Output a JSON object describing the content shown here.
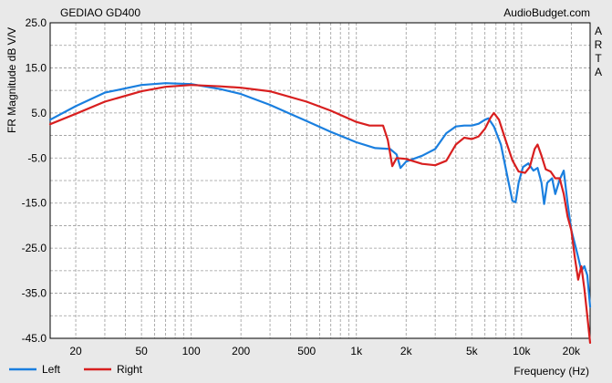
{
  "chart_data": {
    "type": "line",
    "title": "GEDIAO GD400",
    "watermark": "AudioBudget.com",
    "side_label": "ARTA",
    "ylabel": "FR Magnitude dB V/V",
    "xlabel": "Frequency (Hz)",
    "xscale": "log",
    "xlim": [
      14,
      26000
    ],
    "ylim": [
      -45,
      25
    ],
    "yticks": [
      25,
      15,
      5,
      -5,
      -15,
      -25,
      -35,
      -45
    ],
    "ytick_labels": [
      "25.0",
      "15.0",
      "5.0",
      "-5.0",
      "-15.0",
      "-25.0",
      "-35.0",
      "-45.0"
    ],
    "xticks": [
      20,
      50,
      100,
      200,
      500,
      1000,
      2000,
      5000,
      10000,
      20000
    ],
    "xtick_labels": [
      "20",
      "50",
      "100",
      "200",
      "500",
      "1k",
      "2k",
      "5k",
      "10k",
      "20k"
    ],
    "grid": true,
    "legend_position": "bottom-left",
    "series": [
      {
        "name": "Left",
        "color": "#1a7fdf",
        "points": [
          [
            14,
            3.5
          ],
          [
            20,
            6.5
          ],
          [
            30,
            9.5
          ],
          [
            50,
            11.2
          ],
          [
            70,
            11.6
          ],
          [
            100,
            11.4
          ],
          [
            150,
            10.3
          ],
          [
            200,
            9.2
          ],
          [
            300,
            6.8
          ],
          [
            500,
            3.2
          ],
          [
            700,
            0.8
          ],
          [
            1000,
            -1.5
          ],
          [
            1300,
            -2.8
          ],
          [
            1600,
            -3.0
          ],
          [
            1750,
            -4.2
          ],
          [
            1850,
            -7.2
          ],
          [
            2000,
            -5.8
          ],
          [
            2500,
            -4.5
          ],
          [
            3000,
            -3.0
          ],
          [
            3500,
            0.5
          ],
          [
            4000,
            2.0
          ],
          [
            4500,
            2.2
          ],
          [
            5000,
            2.2
          ],
          [
            5500,
            2.6
          ],
          [
            6000,
            3.5
          ],
          [
            6300,
            3.8
          ],
          [
            6800,
            2.0
          ],
          [
            7500,
            -2.0
          ],
          [
            8300,
            -10.0
          ],
          [
            8800,
            -14.5
          ],
          [
            9200,
            -14.8
          ],
          [
            9600,
            -10.5
          ],
          [
            10200,
            -7.0
          ],
          [
            11000,
            -6.2
          ],
          [
            11800,
            -7.8
          ],
          [
            12500,
            -7.2
          ],
          [
            13200,
            -10.5
          ],
          [
            13700,
            -15.2
          ],
          [
            14300,
            -10.5
          ],
          [
            15300,
            -9.5
          ],
          [
            16000,
            -13.0
          ],
          [
            17000,
            -9.8
          ],
          [
            18000,
            -7.8
          ],
          [
            19000,
            -15.0
          ],
          [
            20000,
            -21.0
          ],
          [
            21000,
            -24.0
          ],
          [
            22000,
            -27.0
          ],
          [
            23000,
            -30.0
          ],
          [
            24000,
            -29.0
          ],
          [
            25000,
            -31.0
          ],
          [
            26000,
            -38.0
          ]
        ]
      },
      {
        "name": "Right",
        "color": "#d81f1f",
        "points": [
          [
            14,
            2.5
          ],
          [
            20,
            4.8
          ],
          [
            30,
            7.5
          ],
          [
            50,
            9.8
          ],
          [
            70,
            10.8
          ],
          [
            100,
            11.2
          ],
          [
            150,
            10.9
          ],
          [
            200,
            10.6
          ],
          [
            300,
            9.8
          ],
          [
            500,
            7.5
          ],
          [
            700,
            5.5
          ],
          [
            1000,
            3.0
          ],
          [
            1200,
            2.2
          ],
          [
            1450,
            2.2
          ],
          [
            1550,
            -1.0
          ],
          [
            1650,
            -6.8
          ],
          [
            1750,
            -5.0
          ],
          [
            2000,
            -5.2
          ],
          [
            2500,
            -6.3
          ],
          [
            3000,
            -6.6
          ],
          [
            3500,
            -5.6
          ],
          [
            4000,
            -2.0
          ],
          [
            4500,
            -0.5
          ],
          [
            5000,
            -0.8
          ],
          [
            5500,
            -0.2
          ],
          [
            6000,
            1.5
          ],
          [
            6500,
            4.0
          ],
          [
            6800,
            5.0
          ],
          [
            7300,
            3.5
          ],
          [
            8000,
            -1.0
          ],
          [
            8800,
            -5.5
          ],
          [
            9600,
            -8.0
          ],
          [
            10500,
            -8.3
          ],
          [
            11200,
            -7.0
          ],
          [
            12000,
            -3.0
          ],
          [
            12500,
            -2.0
          ],
          [
            13200,
            -4.5
          ],
          [
            14000,
            -7.5
          ],
          [
            15000,
            -8.0
          ],
          [
            16000,
            -9.5
          ],
          [
            17000,
            -9.5
          ],
          [
            18000,
            -13.0
          ],
          [
            19000,
            -18.0
          ],
          [
            20000,
            -21.0
          ],
          [
            21000,
            -27.0
          ],
          [
            22000,
            -32.0
          ],
          [
            23000,
            -29.0
          ],
          [
            24000,
            -34.0
          ],
          [
            25000,
            -40.0
          ],
          [
            26000,
            -46.0
          ]
        ]
      }
    ]
  }
}
